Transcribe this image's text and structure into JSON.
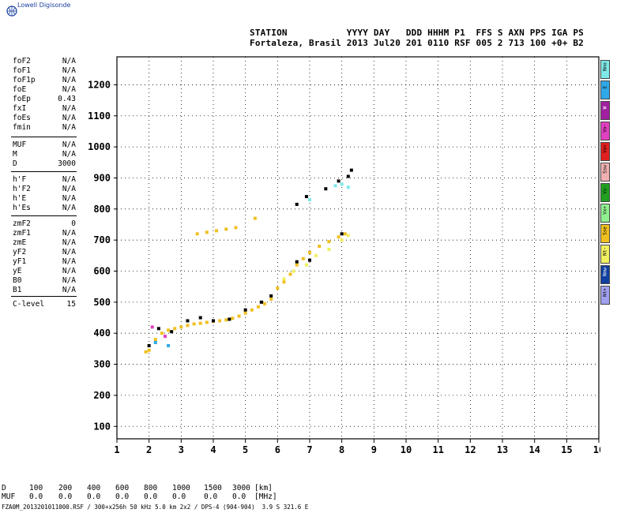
{
  "brand": {
    "name": "Lowell Digisonde"
  },
  "header": {
    "line1": "STATION           YYYY DAY   DDD HHHM P1  FFS S AXN PPS IGA PS",
    "line2": "Fortaleza, Brasil 2013 Jul20 201 0110 RSF 005 2 713 100 +0+ B2"
  },
  "params_group1": [
    {
      "k": "foF2",
      "v": "N/A"
    },
    {
      "k": "foF1",
      "v": "N/A"
    },
    {
      "k": "foF1p",
      "v": "N/A"
    },
    {
      "k": "foE",
      "v": "N/A"
    },
    {
      "k": "foEp",
      "v": "0.43"
    },
    {
      "k": "fxI",
      "v": "N/A"
    },
    {
      "k": "foEs",
      "v": "N/A"
    },
    {
      "k": "fmin",
      "v": "N/A"
    }
  ],
  "params_group2": [
    {
      "k": "MUF",
      "v": "N/A"
    },
    {
      "k": "M",
      "v": "N/A"
    },
    {
      "k": "D",
      "v": "3000"
    }
  ],
  "params_group3": [
    {
      "k": "h'F",
      "v": "N/A"
    },
    {
      "k": "h'F2",
      "v": "N/A"
    },
    {
      "k": "h'E",
      "v": "N/A"
    },
    {
      "k": "h'Es",
      "v": "N/A"
    }
  ],
  "params_group4": [
    {
      "k": "zmF2",
      "v": "0"
    },
    {
      "k": "zmF1",
      "v": "N/A"
    },
    {
      "k": "zmE",
      "v": "N/A"
    },
    {
      "k": "yF2",
      "v": "N/A"
    },
    {
      "k": "yF1",
      "v": "N/A"
    },
    {
      "k": "yE",
      "v": "N/A"
    },
    {
      "k": "B0",
      "v": "N/A"
    },
    {
      "k": "B1",
      "v": "N/A"
    }
  ],
  "params_group5": [
    {
      "k": "C-level",
      "v": "15"
    }
  ],
  "legend": [
    {
      "label": "Nno",
      "color": "#7fe8e8"
    },
    {
      "label": "E",
      "color": "#2fa8e8"
    },
    {
      "label": "W",
      "color": "#a020a0"
    },
    {
      "label": "Vo-",
      "color": "#e040c0"
    },
    {
      "label": "Vo+",
      "color": "#e02020"
    },
    {
      "label": "Ssw",
      "color": "#f0b0b0"
    },
    {
      "label": "Vx-",
      "color": "#20a020"
    },
    {
      "label": "Vx+",
      "color": "#90f090"
    },
    {
      "label": "Sse",
      "color": "#f0c020"
    },
    {
      "label": "Nt-",
      "color": "#f0f060"
    },
    {
      "label": "Nnw",
      "color": "#1040a0"
    },
    {
      "label": "Nt+",
      "color": "#a0a0f0"
    }
  ],
  "footer": {
    "row_d": [
      "D",
      "100",
      "200",
      "400",
      "600",
      "800",
      "1000",
      "1500",
      "3000",
      "[km]"
    ],
    "row_muf": [
      "MUF",
      "0.0",
      "0.0",
      "0.0",
      "0.0",
      "0.0",
      "0.0",
      "0.0",
      "0.0",
      "[MHz]"
    ],
    "bottom_line": "FZA0M_2013201011000.RSF / 300+x256h 50 kHz 5.0 km 2x2 / DPS-4 (904-904)  3.9 S 321.6 E"
  },
  "chart_data": {
    "type": "scatter",
    "x_ticks": [
      "1",
      "2",
      "3",
      "4",
      "5",
      "6",
      "7",
      "8",
      "9",
      "10",
      "11",
      "12",
      "13",
      "14",
      "15",
      "16"
    ],
    "y_ticks": [
      "100",
      "200",
      "300",
      "400",
      "500",
      "600",
      "700",
      "800",
      "900",
      "1000",
      "1100",
      "1200"
    ],
    "xlim": [
      1,
      16
    ],
    "ylim": [
      60,
      1290
    ],
    "grid": true,
    "series": [
      {
        "color": "#f0c020",
        "points": [
          [
            1.9,
            340
          ],
          [
            2.0,
            345
          ],
          [
            2.2,
            380
          ],
          [
            2.4,
            400
          ],
          [
            2.6,
            410
          ],
          [
            2.8,
            415
          ],
          [
            3.0,
            420
          ],
          [
            3.2,
            425
          ],
          [
            3.4,
            430
          ],
          [
            3.6,
            432
          ],
          [
            3.8,
            435
          ],
          [
            4.0,
            438
          ],
          [
            4.2,
            440
          ],
          [
            4.4,
            443
          ],
          [
            4.6,
            448
          ],
          [
            4.8,
            455
          ],
          [
            5.0,
            465
          ],
          [
            5.2,
            475
          ],
          [
            5.4,
            485
          ],
          [
            5.6,
            495
          ],
          [
            5.8,
            510
          ],
          [
            6.0,
            545
          ],
          [
            6.2,
            565
          ],
          [
            6.4,
            590
          ],
          [
            6.6,
            620
          ],
          [
            6.8,
            640
          ],
          [
            7.0,
            660
          ],
          [
            7.3,
            680
          ],
          [
            7.6,
            695
          ],
          [
            7.9,
            710
          ],
          [
            8.1,
            720
          ],
          [
            3.5,
            720
          ],
          [
            3.8,
            725
          ],
          [
            4.1,
            730
          ],
          [
            4.4,
            735
          ],
          [
            4.7,
            740
          ],
          [
            5.3,
            770
          ]
        ]
      },
      {
        "color": "#000000",
        "points": [
          [
            2.0,
            360
          ],
          [
            2.3,
            415
          ],
          [
            2.7,
            405
          ],
          [
            3.2,
            440
          ],
          [
            3.6,
            450
          ],
          [
            4.0,
            440
          ],
          [
            4.5,
            445
          ],
          [
            5.0,
            475
          ],
          [
            5.5,
            500
          ],
          [
            5.8,
            520
          ],
          [
            6.6,
            630
          ],
          [
            7.0,
            635
          ],
          [
            8.0,
            720
          ],
          [
            8.2,
            905
          ],
          [
            8.3,
            925
          ],
          [
            6.6,
            815
          ],
          [
            6.9,
            840
          ],
          [
            7.5,
            865
          ],
          [
            7.9,
            890
          ]
        ]
      },
      {
        "color": "#f0f060",
        "points": [
          [
            6.2,
            575
          ],
          [
            6.5,
            600
          ],
          [
            6.9,
            620
          ],
          [
            7.2,
            650
          ],
          [
            7.6,
            670
          ],
          [
            8.0,
            700
          ],
          [
            8.2,
            715
          ]
        ]
      },
      {
        "color": "#7fe8e8",
        "points": [
          [
            7.0,
            830
          ],
          [
            7.8,
            875
          ],
          [
            8.0,
            880
          ],
          [
            8.2,
            870
          ]
        ]
      },
      {
        "color": "#e040c0",
        "points": [
          [
            2.1,
            420
          ],
          [
            2.5,
            390
          ]
        ]
      },
      {
        "color": "#2fa8e8",
        "points": [
          [
            2.2,
            370
          ],
          [
            2.6,
            360
          ]
        ]
      }
    ]
  }
}
